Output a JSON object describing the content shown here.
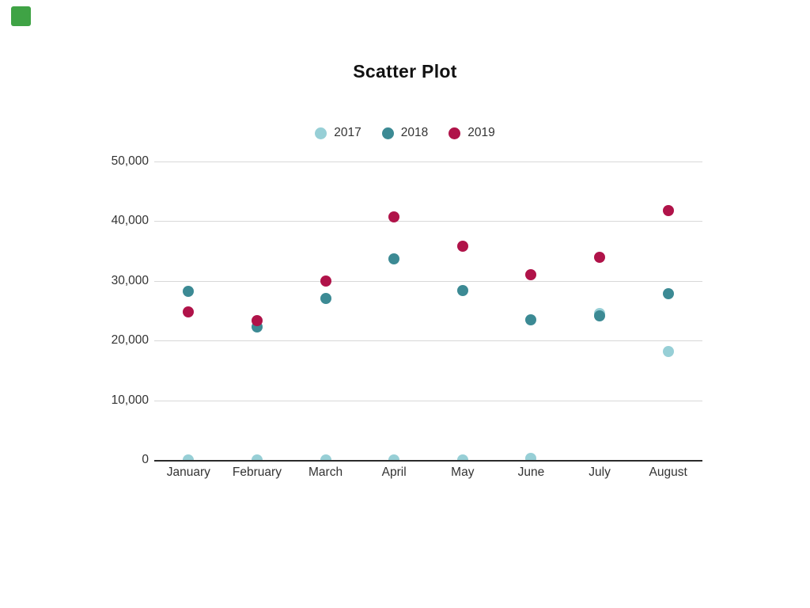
{
  "marker": {
    "color": "#3FA345"
  },
  "chart_data": {
    "type": "scatter",
    "title": "Scatter Plot",
    "categories": [
      "January",
      "February",
      "March",
      "April",
      "May",
      "June",
      "July",
      "August"
    ],
    "series": [
      {
        "name": "2017",
        "color": "#97CFD6",
        "values": [
          0,
          0,
          0,
          0,
          0,
          300,
          24600,
          18200
        ]
      },
      {
        "name": "2018",
        "color": "#3C8A94",
        "values": [
          28200,
          22300,
          27000,
          33700,
          28400,
          23500,
          24200,
          27900
        ]
      },
      {
        "name": "2019",
        "color": "#B01349",
        "values": [
          24800,
          23400,
          30000,
          40700,
          35800,
          31000,
          33900,
          41800
        ]
      }
    ],
    "ylim": [
      0,
      50000
    ],
    "yticks": [
      0,
      10000,
      20000,
      30000,
      40000,
      50000
    ],
    "ytick_labels": [
      "0",
      "10,000",
      "20,000",
      "30,000",
      "40,000",
      "50,000"
    ],
    "grid": true,
    "legend_position": "top-center",
    "xlabel": "",
    "ylabel": ""
  },
  "style": {
    "background": "#ffffff",
    "grid_color": "#D8D8D8",
    "axis_color": "#2B2B2B",
    "label_color": "#333333",
    "title_color": "#121212"
  }
}
